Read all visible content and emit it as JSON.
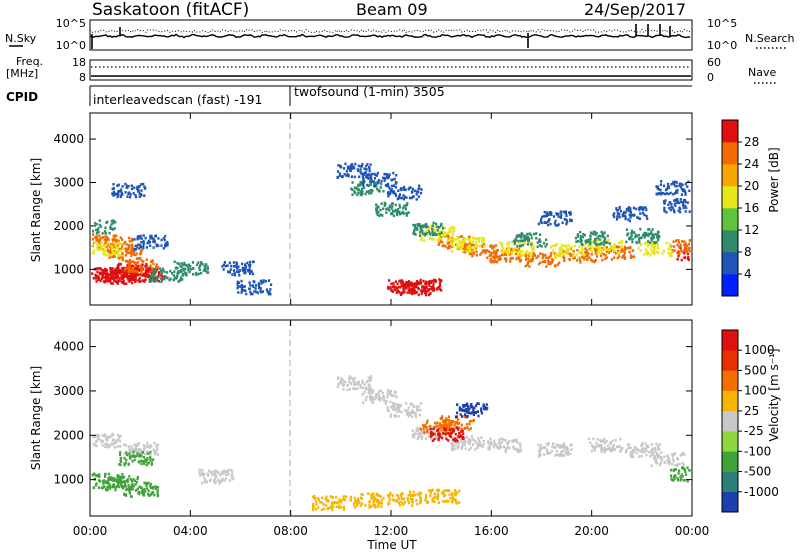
{
  "header": {
    "station": "Saskatoon (fitACF)",
    "beam": "Beam 09",
    "date": "24/Sep/2017"
  },
  "noise_panel": {
    "left_label": "N.Sky",
    "left_ticks": [
      "10^5",
      "10^0"
    ],
    "right_label": "N.Search",
    "right_ticks": [
      "10^5",
      "10^0"
    ]
  },
  "freq_panel": {
    "left_label_1": "Freq.",
    "left_label_2": "[MHz]",
    "left_ticks": [
      "18",
      "8"
    ],
    "right_label": "Nave",
    "right_ticks": [
      "60",
      "0"
    ]
  },
  "cpid_panel": {
    "label": "CPID",
    "segments": [
      {
        "text": "interleavedscan (fast) -191",
        "start_hour": 0,
        "end_hour": 8.0
      },
      {
        "text": "twofsound (1-min) 3505",
        "start_hour": 8.0,
        "end_hour": 24
      }
    ]
  },
  "x_axis": {
    "label": "Time UT",
    "ticks": [
      "00:00",
      "04:00",
      "08:00",
      "12:00",
      "16:00",
      "20:00",
      "00:00"
    ],
    "range_hours": [
      0,
      24
    ]
  },
  "chart_data": [
    {
      "type": "heatmap",
      "ylabel": "Slant Range [km]",
      "ylim": [
        180,
        4600
      ],
      "yticks": [
        1000,
        2000,
        3000,
        4000
      ],
      "ytick_labels": [
        "1000",
        "2000",
        "3000",
        "4000"
      ],
      "colorbar": {
        "label": "Power [dB]",
        "tick_labels": [
          "4",
          "8",
          "12",
          "16",
          "20",
          "24",
          "28"
        ],
        "colors": [
          "#0020ff",
          "#1f55b8",
          "#2e8c6a",
          "#60c43a",
          "#e8e619",
          "#f7a600",
          "#f26a00",
          "#e01010"
        ]
      },
      "series": [
        {
          "color": "#e01010",
          "points": [
            [
              0.5,
              900
            ],
            [
              0.9,
              900
            ],
            [
              1.2,
              850
            ],
            [
              1.6,
              1000
            ],
            [
              1.9,
              950
            ],
            [
              2.2,
              900
            ],
            [
              12.5,
              620
            ],
            [
              13.0,
              600
            ],
            [
              13.3,
              640
            ],
            [
              24.0,
              1400
            ]
          ]
        },
        {
          "color": "#f26a00",
          "points": [
            [
              0.4,
              1700
            ],
            [
              1.0,
              1600
            ],
            [
              1.4,
              1400
            ],
            [
              2.0,
              1100
            ],
            [
              14.5,
              1650
            ],
            [
              15.5,
              1450
            ],
            [
              16.5,
              1350
            ],
            [
              18.0,
              1250
            ],
            [
              19.5,
              1350
            ],
            [
              21.0,
              1400
            ],
            [
              23.8,
              1550
            ]
          ]
        },
        {
          "color": "#e8e619",
          "points": [
            [
              0.6,
              1500
            ],
            [
              13.8,
              1850
            ],
            [
              15.0,
              1600
            ],
            [
              17.0,
              1500
            ],
            [
              19.0,
              1450
            ],
            [
              20.5,
              1550
            ],
            [
              22.5,
              1500
            ]
          ]
        },
        {
          "color": "#2e8c6a",
          "points": [
            [
              0.3,
              2000
            ],
            [
              3.0,
              900
            ],
            [
              4.0,
              1050
            ],
            [
              11.0,
              2900
            ],
            [
              12.0,
              2400
            ],
            [
              13.5,
              1950
            ],
            [
              17.5,
              1700
            ],
            [
              20.0,
              1750
            ],
            [
              22.0,
              1800
            ]
          ]
        },
        {
          "color": "#1f55b8",
          "points": [
            [
              1.5,
              2850
            ],
            [
              2.4,
              1650
            ],
            [
              5.8,
              1050
            ],
            [
              6.5,
              620
            ],
            [
              10.5,
              3300
            ],
            [
              11.5,
              3100
            ],
            [
              12.5,
              2800
            ],
            [
              18.5,
              2200
            ],
            [
              21.5,
              2300
            ],
            [
              23.2,
              2900
            ],
            [
              23.5,
              2500
            ]
          ]
        }
      ]
    },
    {
      "type": "heatmap",
      "ylabel": "Slant Range [km]",
      "ylim": [
        180,
        4600
      ],
      "yticks": [
        1000,
        2000,
        3000,
        4000
      ],
      "ytick_labels": [
        "1000",
        "2000",
        "3000",
        "4000"
      ],
      "colorbar": {
        "label": "Velocity [m s⁻¹]",
        "tick_labels": [
          "1000",
          "500",
          "100",
          "25",
          "-25",
          "-100",
          "-500",
          "-1000"
        ],
        "colors": [
          "#1f3fb0",
          "#2a7f7a",
          "#3fa33a",
          "#8fd63f",
          "#c8c8c8",
          "#f7b400",
          "#f27000",
          "#e83000",
          "#e01010"
        ]
      },
      "series": [
        {
          "color": "#c8c8c8",
          "points": [
            [
              0.5,
              1900
            ],
            [
              2.0,
              1700
            ],
            [
              5.0,
              1100
            ],
            [
              10.5,
              3200
            ],
            [
              11.5,
              2900
            ],
            [
              12.5,
              2600
            ],
            [
              13.5,
              2100
            ],
            [
              15.0,
              1850
            ],
            [
              16.5,
              1800
            ],
            [
              18.5,
              1700
            ],
            [
              20.5,
              1800
            ],
            [
              22.0,
              1700
            ],
            [
              23.0,
              1500
            ]
          ]
        },
        {
          "color": "#3fa33a",
          "points": [
            [
              0.6,
              1000
            ],
            [
              1.2,
              950
            ],
            [
              1.8,
              1500
            ],
            [
              2.0,
              800
            ],
            [
              23.8,
              1150
            ]
          ]
        },
        {
          "color": "#f7b400",
          "points": [
            [
              9.5,
              500
            ],
            [
              11.0,
              560
            ],
            [
              12.5,
              600
            ],
            [
              14.0,
              650
            ]
          ]
        },
        {
          "color": "#f27000",
          "points": [
            [
              13.8,
              2200
            ],
            [
              14.6,
              2300
            ]
          ]
        },
        {
          "color": "#e01010",
          "points": [
            [
              14.2,
              2050
            ]
          ]
        },
        {
          "color": "#1f3fb0",
          "points": [
            [
              15.2,
              2600
            ]
          ]
        }
      ]
    }
  ]
}
